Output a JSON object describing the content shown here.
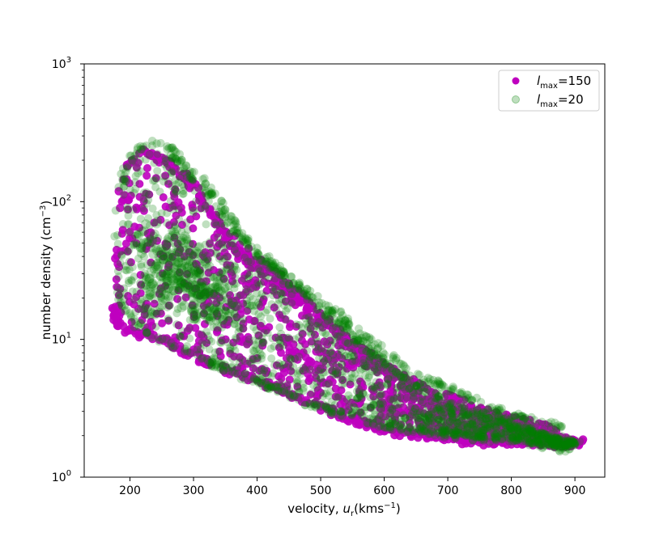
{
  "chart_data": {
    "type": "scatter",
    "title": "",
    "xlabel": "velocity, u_r(kms^-1)",
    "xlabel_parts": {
      "main": "velocity, ",
      "var": "u",
      "sub": "r",
      "unit": "(kms",
      "sup": "−1",
      "close": ")"
    },
    "ylabel": "number density (cm^-3)",
    "ylabel_parts": {
      "main": "number density (cm",
      "sup": "−3",
      "close": ")"
    },
    "xlim": [
      128,
      947
    ],
    "ylim": [
      1,
      1000
    ],
    "yscale": "log",
    "grid": false,
    "legend_position": "top-right",
    "x_ticks": [
      200,
      300,
      400,
      500,
      600,
      700,
      800,
      900
    ],
    "y_ticks": [
      {
        "value": 1,
        "base": "10",
        "exp": "0"
      },
      {
        "value": 10,
        "base": "10",
        "exp": "1"
      },
      {
        "value": 100,
        "base": "10",
        "exp": "2"
      },
      {
        "value": 1000,
        "base": "10",
        "exp": "3"
      }
    ],
    "series": [
      {
        "name": "l_max=150",
        "legend": {
          "sym": "l",
          "sub": "max",
          "rest": "=150"
        },
        "color": "#bf00bf",
        "opacity": 0.9,
        "core": [
          [
            175,
            16
          ],
          [
            178,
            40
          ],
          [
            182,
            80
          ],
          [
            185,
            120
          ],
          [
            190,
            160
          ],
          [
            200,
            200
          ],
          [
            215,
            230
          ],
          [
            235,
            215
          ],
          [
            260,
            190
          ],
          [
            285,
            150
          ],
          [
            305,
            115
          ],
          [
            330,
            80
          ],
          [
            360,
            55
          ],
          [
            400,
            38
          ],
          [
            450,
            25
          ],
          [
            500,
            15
          ],
          [
            550,
            9
          ],
          [
            600,
            6
          ],
          [
            650,
            4
          ],
          [
            700,
            3.3
          ],
          [
            750,
            2.8
          ],
          [
            800,
            2.4
          ],
          [
            840,
            2.1
          ],
          [
            870,
            1.9
          ],
          [
            900,
            1.8
          ]
        ],
        "lower": [
          [
            170,
            20
          ],
          [
            175,
            14
          ],
          [
            185,
            12
          ],
          [
            210,
            11
          ],
          [
            240,
            10.5
          ],
          [
            270,
            9
          ],
          [
            300,
            7.5
          ],
          [
            350,
            6
          ],
          [
            400,
            5
          ],
          [
            450,
            4
          ],
          [
            500,
            3.2
          ],
          [
            550,
            2.6
          ],
          [
            600,
            2.2
          ],
          [
            650,
            2.0
          ],
          [
            700,
            1.85
          ],
          [
            750,
            1.8
          ],
          [
            800,
            1.8
          ],
          [
            850,
            1.75
          ],
          [
            900,
            1.75
          ],
          [
            915,
            1.8
          ]
        ],
        "upper": [
          [
            260,
            200
          ],
          [
            290,
            150
          ],
          [
            320,
            95
          ],
          [
            350,
            55
          ],
          [
            380,
            38
          ],
          [
            420,
            28
          ],
          [
            470,
            18
          ],
          [
            520,
            12
          ],
          [
            580,
            7.5
          ],
          [
            640,
            5
          ],
          [
            700,
            3.8
          ],
          [
            760,
            3.0
          ],
          [
            820,
            2.5
          ],
          [
            870,
            2.2
          ]
        ]
      },
      {
        "name": "l_max=20",
        "legend": {
          "sym": "l",
          "sub": "max",
          "rest": "=20"
        },
        "color": "#008000",
        "opacity": 0.25,
        "core": [
          [
            172,
            18
          ],
          [
            176,
            45
          ],
          [
            180,
            90
          ],
          [
            186,
            140
          ],
          [
            195,
            190
          ],
          [
            208,
            230
          ],
          [
            225,
            260
          ],
          [
            240,
            265
          ],
          [
            262,
            230
          ],
          [
            285,
            180
          ],
          [
            310,
            130
          ],
          [
            340,
            85
          ],
          [
            370,
            60
          ],
          [
            410,
            40
          ],
          [
            460,
            26
          ],
          [
            510,
            16
          ],
          [
            560,
            10
          ],
          [
            610,
            6.5
          ],
          [
            660,
            4.5
          ],
          [
            710,
            3.4
          ],
          [
            760,
            2.8
          ],
          [
            810,
            2.4
          ],
          [
            850,
            2.1
          ],
          [
            880,
            1.9
          ],
          [
            905,
            1.8
          ]
        ],
        "lower": [
          [
            180,
            20
          ],
          [
            200,
            14
          ],
          [
            230,
            11
          ],
          [
            260,
            9.5
          ],
          [
            290,
            8
          ],
          [
            330,
            6.5
          ],
          [
            370,
            5.5
          ],
          [
            420,
            4.5
          ],
          [
            470,
            3.6
          ],
          [
            520,
            3.0
          ],
          [
            570,
            2.6
          ],
          [
            620,
            2.3
          ],
          [
            680,
            2.1
          ],
          [
            740,
            1.95
          ],
          [
            800,
            1.85
          ],
          [
            850,
            1.7
          ],
          [
            880,
            1.6
          ],
          [
            900,
            1.7
          ]
        ],
        "upper": [
          [
            250,
            265
          ],
          [
            280,
            210
          ],
          [
            310,
            150
          ],
          [
            340,
            100
          ],
          [
            365,
            70
          ],
          [
            390,
            45
          ],
          [
            430,
            32
          ],
          [
            480,
            22
          ],
          [
            530,
            15
          ],
          [
            590,
            9
          ],
          [
            650,
            5.5
          ],
          [
            710,
            4.2
          ],
          [
            770,
            3.2
          ],
          [
            830,
            2.6
          ],
          [
            880,
            2.3
          ]
        ],
        "blob": [
          [
            240,
            30
          ],
          [
            260,
            35
          ],
          [
            280,
            30
          ],
          [
            300,
            25
          ],
          [
            320,
            18
          ],
          [
            250,
            20
          ],
          [
            270,
            45
          ],
          [
            230,
            55
          ],
          [
            290,
            40
          ],
          [
            310,
            30
          ],
          [
            330,
            22
          ],
          [
            350,
            16
          ],
          [
            270,
            25
          ],
          [
            300,
            20
          ]
        ]
      }
    ]
  }
}
